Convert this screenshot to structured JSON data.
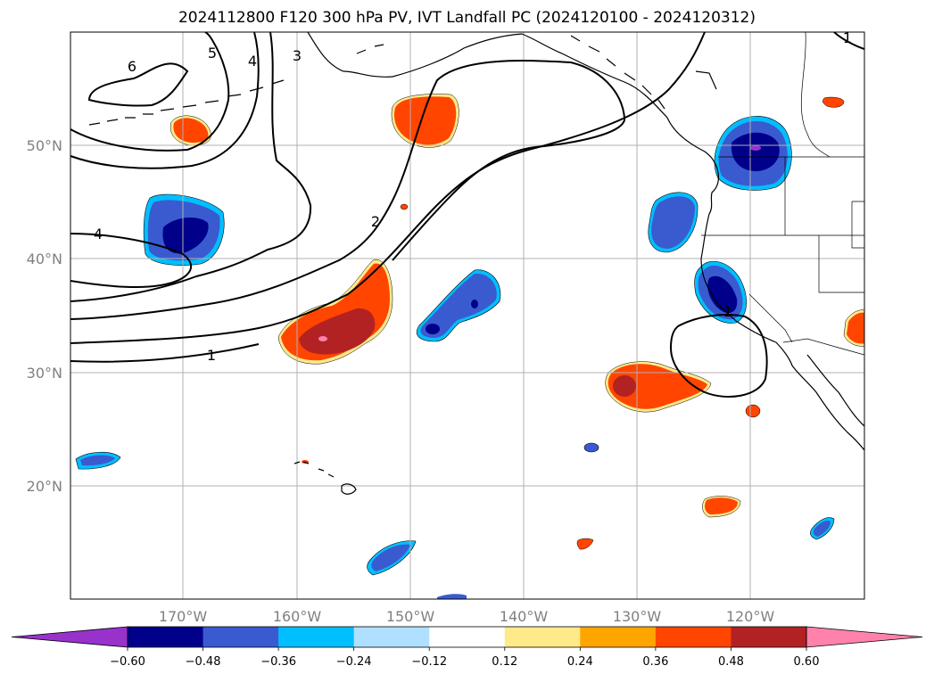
{
  "title": "2024112800 F120 300 hPa PV, IVT Landfall PC (2024120100 - 2024120312)",
  "map": {
    "projection": "PlateCarree",
    "lon_range": [
      -180,
      -110
    ],
    "lat_range": [
      10,
      60
    ],
    "gridlines": true,
    "lon_ticks": [
      {
        "lon": -170,
        "label": "170°W"
      },
      {
        "lon": -160,
        "label": "160°W"
      },
      {
        "lon": -150,
        "label": "150°W"
      },
      {
        "lon": -140,
        "label": "140°W"
      },
      {
        "lon": -130,
        "label": "130°W"
      },
      {
        "lon": -120,
        "label": "120°W"
      }
    ],
    "lat_ticks": [
      {
        "lat": 50,
        "label": "50°N"
      },
      {
        "lat": 40,
        "label": "40°N"
      },
      {
        "lat": 30,
        "label": "30°N"
      },
      {
        "lat": 20,
        "label": "20°N"
      }
    ]
  },
  "pv_contour_labels": [
    "6",
    "5",
    "4",
    "3",
    "4",
    "2",
    "1",
    "1",
    "1"
  ],
  "colorbar": {
    "extend": "both",
    "ticks": [
      "−0.60",
      "−0.48",
      "−0.36",
      "−0.24",
      "−0.12",
      "0.12",
      "0.24",
      "0.36",
      "0.48",
      "0.60"
    ],
    "colors": [
      "#9932cc",
      "#00008b",
      "#3a5bd0",
      "#00bfff",
      "#b0e0ff",
      "#ffffff",
      "#ffea8a",
      "#ffa500",
      "#ff4500",
      "#b22222",
      "#ff82ab"
    ]
  }
}
